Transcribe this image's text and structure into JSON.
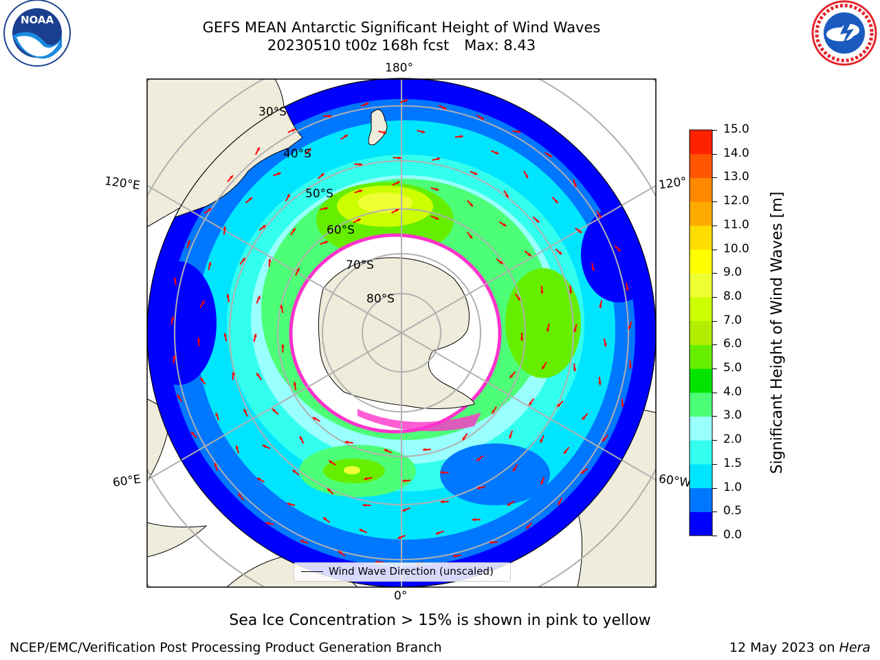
{
  "header": {
    "title_line1": "GEFS MEAN Antarctic Significant Height of Wind Waves",
    "title_date": "20230510 t00z 168h fcst",
    "title_max": "Max: 8.43"
  },
  "logos": {
    "left_logo_text": "NOAA",
    "right_logo_text": "NATIONAL WEATHER SERVICE"
  },
  "map": {
    "longitude_labels": {
      "top": "180°",
      "bottom": "0°",
      "left_upper": "120°E",
      "left_lower": "60°E",
      "right_upper": "120°",
      "right_lower": "60°W"
    },
    "latitude_labels": [
      "30°S",
      "40°S",
      "50°S",
      "60°S",
      "70°S",
      "80°S"
    ],
    "legend_label": "Wind Wave Direction (unscaled)",
    "colors": {
      "land": "#efecdc",
      "ocean_background": "#ffffff",
      "arrow": "#ff0000",
      "ice_edge": "#ff33cc",
      "gridline": "#b0b0b0"
    }
  },
  "colorbar": {
    "title": "Significant Height of Wind Waves [m]",
    "ticks": [
      "15.0",
      "14.0",
      "13.0",
      "12.0",
      "11.0",
      "10.0",
      "9.0",
      "8.0",
      "7.0",
      "6.0",
      "5.0",
      "4.0",
      "3.0",
      "2.0",
      "1.5",
      "1.0",
      "0.5",
      "0.0"
    ],
    "colors_bottom_to_top": [
      "#0000ff",
      "#0077ff",
      "#00e5ff",
      "#33ffee",
      "#99ffff",
      "#4cff77",
      "#00e400",
      "#66ee00",
      "#b3ee00",
      "#ccff00",
      "#eeff33",
      "#ffff00",
      "#ffdd00",
      "#ffaa00",
      "#ff8800",
      "#ff5500",
      "#ff2200"
    ]
  },
  "footer": {
    "note": "Sea Ice Concentration > 15% is shown in pink to yellow",
    "left": "NCEP/EMC/Verification Post Processing Product Generation Branch",
    "right_date": "12 May 2023 on",
    "right_machine": "Hera"
  }
}
